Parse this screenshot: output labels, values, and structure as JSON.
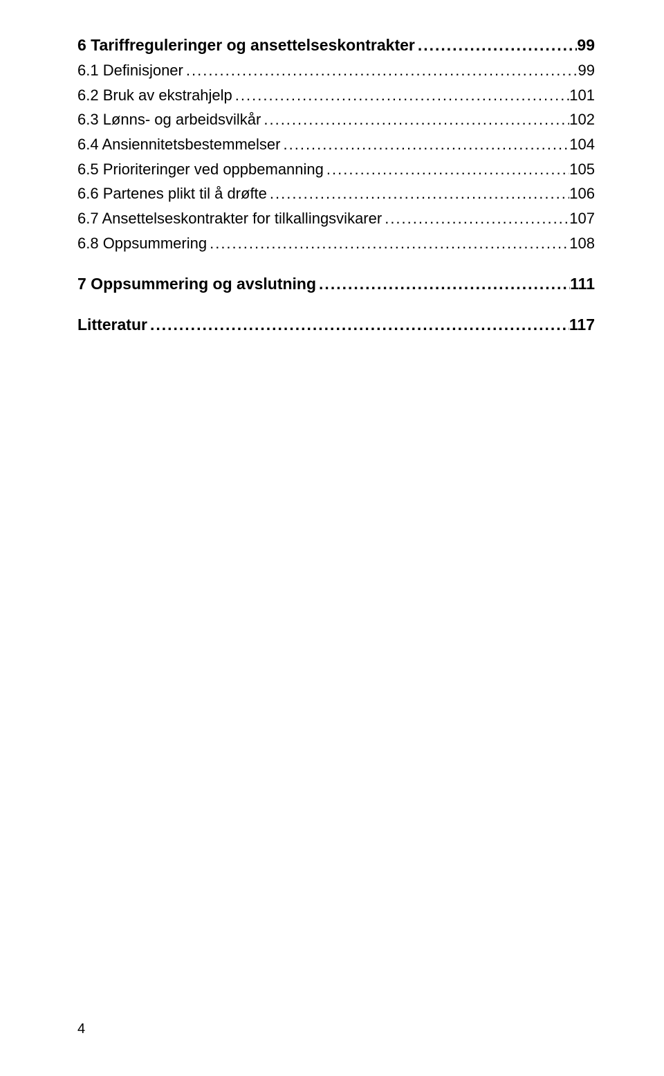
{
  "leader_char": ".",
  "leader_repeat": 200,
  "entries": [
    {
      "label": "6 Tariffreguleringer og ansettelseskontrakter",
      "page": "99",
      "bold": true,
      "fontsize": 23,
      "gap_before": false
    },
    {
      "label": "6.1 Definisjoner",
      "page": "99",
      "bold": false,
      "fontsize": 22,
      "gap_before": false
    },
    {
      "label": "6.2 Bruk av ekstrahjelp",
      "page": "101",
      "bold": false,
      "fontsize": 22,
      "gap_before": false
    },
    {
      "label": "6.3 Lønns- og arbeidsvilkår",
      "page": "102",
      "bold": false,
      "fontsize": 22,
      "gap_before": false
    },
    {
      "label": "6.4 Ansiennitetsbestemmelser",
      "page": "104",
      "bold": false,
      "fontsize": 22,
      "gap_before": false
    },
    {
      "label": "6.5 Prioriteringer ved oppbemanning",
      "page": "105",
      "bold": false,
      "fontsize": 22,
      "gap_before": false
    },
    {
      "label": "6.6 Partenes plikt til å drøfte",
      "page": "106",
      "bold": false,
      "fontsize": 22,
      "gap_before": false
    },
    {
      "label": "6.7 Ansettelseskontrakter for tilkallingsvikarer",
      "page": "107",
      "bold": false,
      "fontsize": 22,
      "gap_before": false
    },
    {
      "label": "6.8 Oppsummering",
      "page": "108",
      "bold": false,
      "fontsize": 22,
      "gap_before": false
    },
    {
      "label": "7 Oppsummering og avslutning",
      "page": "111",
      "bold": true,
      "fontsize": 23,
      "gap_before": true
    },
    {
      "label": "Litteratur",
      "page": "117",
      "bold": true,
      "fontsize": 23,
      "gap_before": true
    }
  ],
  "page_number": "4",
  "colors": {
    "text": "#000000",
    "background": "#ffffff"
  }
}
